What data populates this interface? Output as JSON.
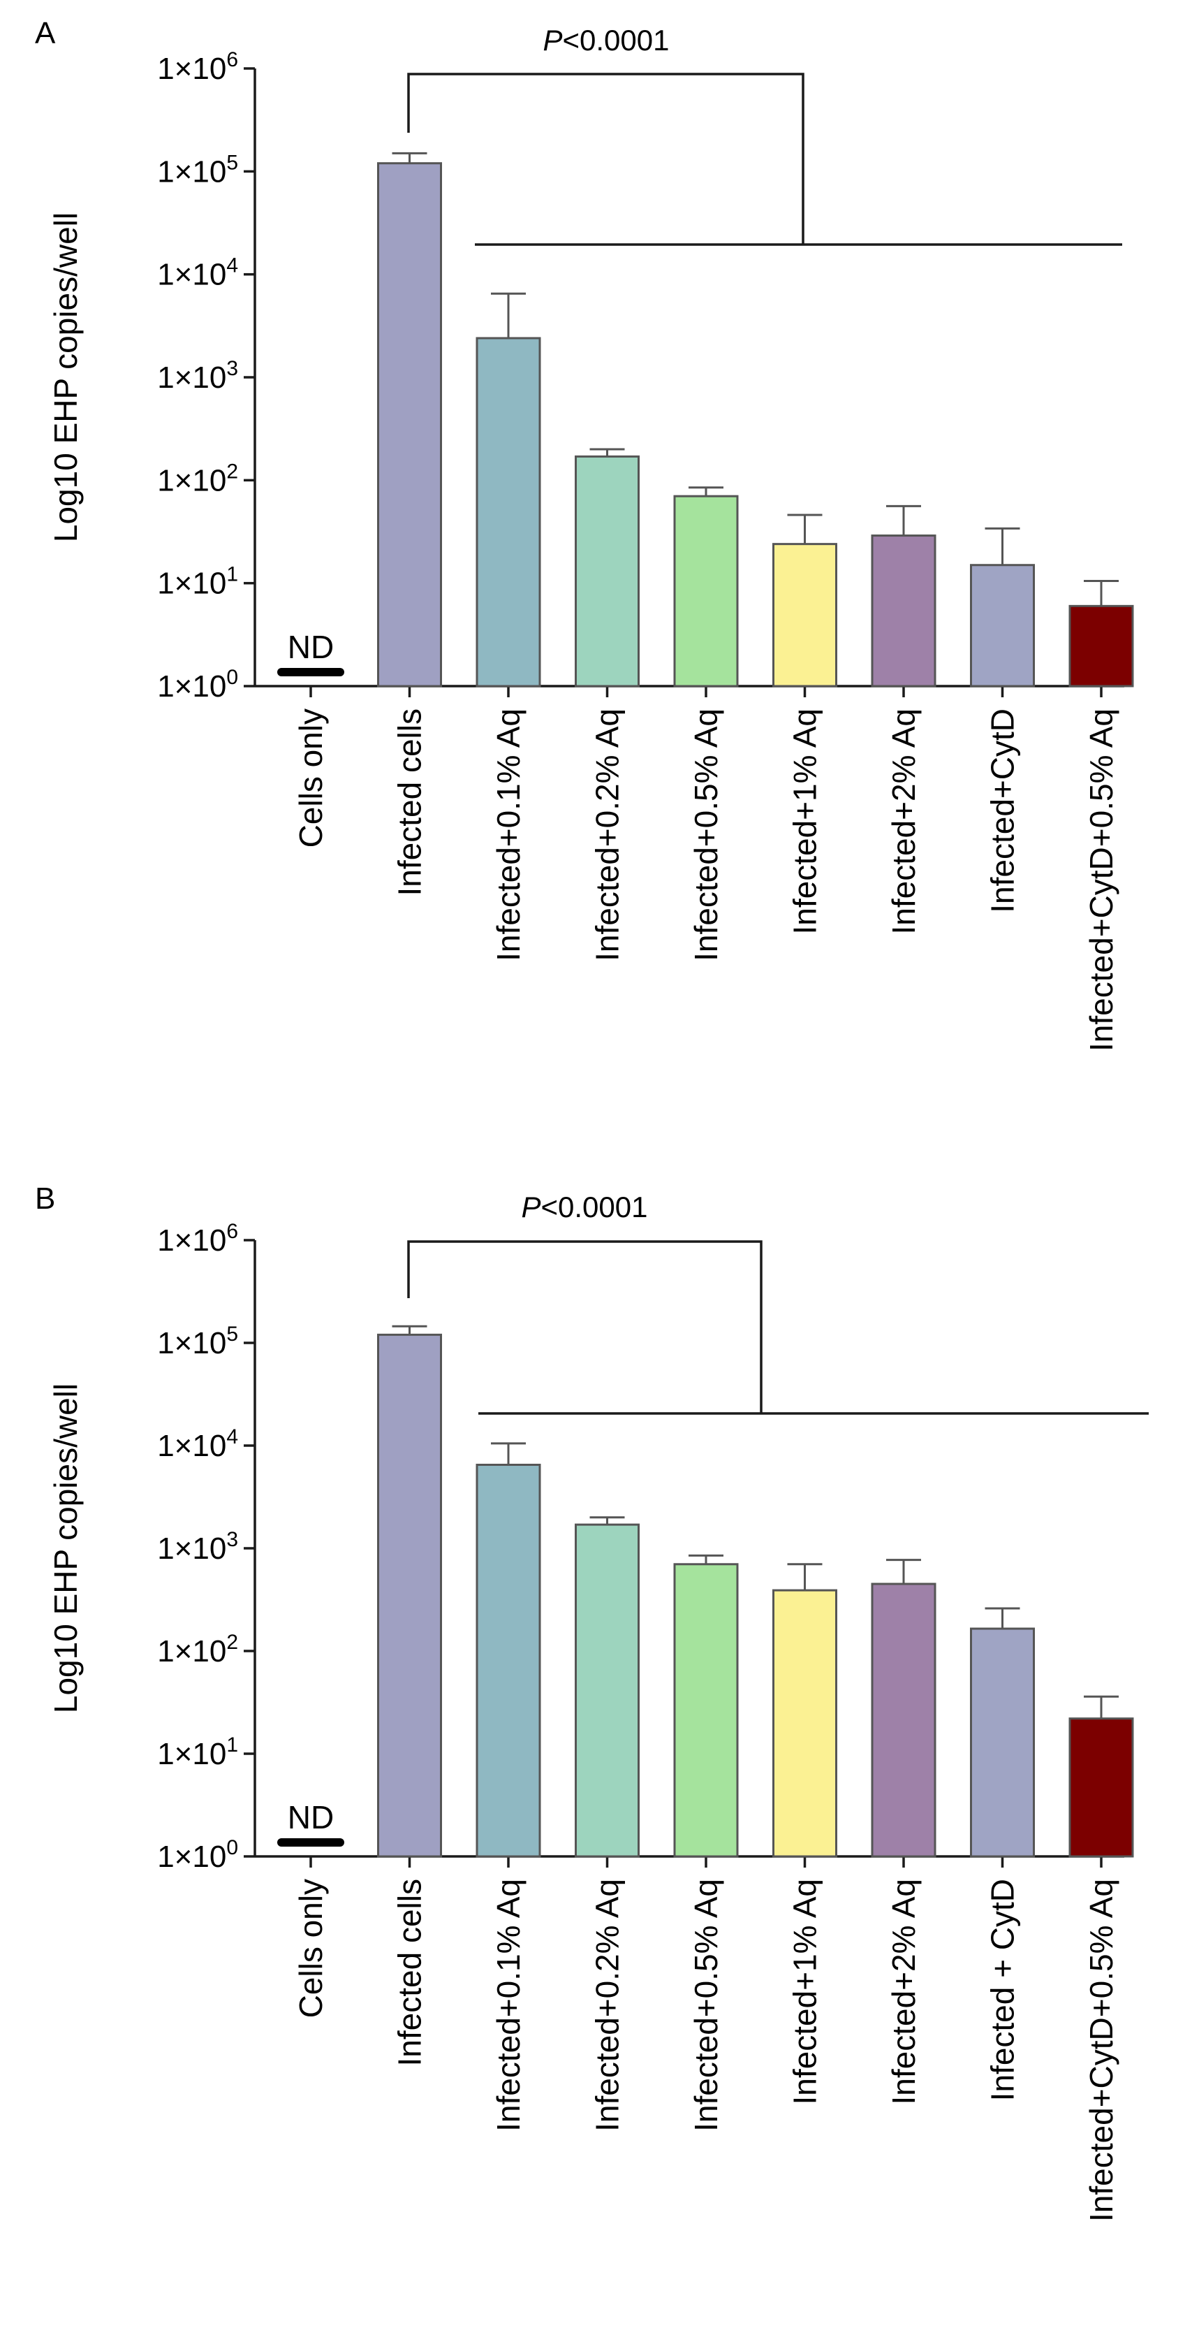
{
  "figure": {
    "significance_marker": "P",
    "significance_rest": "<0.0001",
    "axis_color": "#1a1a1a",
    "error_color": "#555555"
  },
  "chart_data": [
    {
      "panel": "A",
      "type": "bar",
      "scale": "log10",
      "ylabel": "Log10 EHP copies/well",
      "ylim": [
        1,
        1000000
      ],
      "ytick_values": [
        1,
        10,
        100,
        1000,
        10000,
        100000,
        1000000
      ],
      "ytick_labels": [
        {
          "base": "1×10",
          "exp": "0"
        },
        {
          "base": "1×10",
          "exp": "1"
        },
        {
          "base": "1×10",
          "exp": "2"
        },
        {
          "base": "1×10",
          "exp": "3"
        },
        {
          "base": "1×10",
          "exp": "4"
        },
        {
          "base": "1×10",
          "exp": "5"
        },
        {
          "base": "1×10",
          "exp": "6"
        }
      ],
      "categories": [
        "Cells only",
        "Infected cells",
        "Infected+0.1% Aq",
        "Infected+0.2% Aq",
        "Infected+0.5% Aq",
        "Infected+1% Aq",
        "Infected+2% Aq",
        "Infected+CytD",
        "Infected+CytD+0.5% Aq"
      ],
      "values": [
        null,
        120000,
        2400,
        170,
        70,
        24,
        29,
        15,
        6
      ],
      "error_upper": [
        null,
        150000,
        6500,
        200,
        85,
        46,
        56,
        34,
        10.5
      ],
      "colors": [
        "#000000",
        "#9fa0c2",
        "#8fb8c2",
        "#9dd4be",
        "#a5e39d",
        "#fbf193",
        "#9e81a8",
        "#9fa4c4",
        "#7c0000"
      ],
      "nd_label": "ND",
      "significance": "P<0.0001"
    },
    {
      "panel": "B",
      "type": "bar",
      "scale": "log10",
      "ylabel": "Log10 EHP copies/well",
      "ylim": [
        1,
        1000000
      ],
      "ytick_values": [
        1,
        10,
        100,
        1000,
        10000,
        100000,
        1000000
      ],
      "ytick_labels": [
        {
          "base": "1×10",
          "exp": "0"
        },
        {
          "base": "1×10",
          "exp": "1"
        },
        {
          "base": "1×10",
          "exp": "2"
        },
        {
          "base": "1×10",
          "exp": "3"
        },
        {
          "base": "1×10",
          "exp": "4"
        },
        {
          "base": "1×10",
          "exp": "5"
        },
        {
          "base": "1×10",
          "exp": "6"
        }
      ],
      "categories": [
        "Cells only",
        "Infected cells",
        "Infected+0.1% Aq",
        "Infected+0.2% Aq",
        "Infected+0.5% Aq",
        "Infected+1% Aq",
        "Infected+2% Aq",
        "Infected + CytD",
        "Infected+CytD+0.5% Aq"
      ],
      "values": [
        null,
        120000,
        6500,
        1700,
        700,
        390,
        450,
        165,
        22
      ],
      "error_upper": [
        null,
        145000,
        10500,
        2000,
        850,
        700,
        770,
        260,
        36
      ],
      "colors": [
        "#000000",
        "#9fa0c2",
        "#8fb8c2",
        "#9dd4be",
        "#a5e39d",
        "#fbf193",
        "#9e81a8",
        "#9fa4c4",
        "#7c0000"
      ],
      "nd_label": "ND",
      "significance": "P<0.0001"
    }
  ]
}
